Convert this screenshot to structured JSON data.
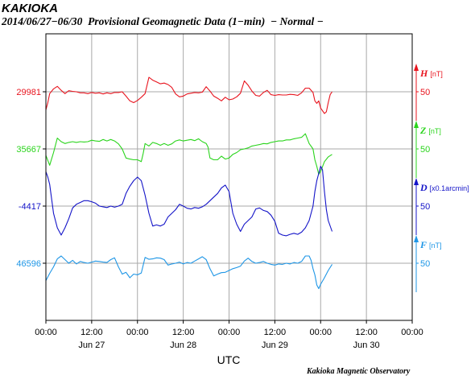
{
  "header": {
    "station": "KAKIOKA",
    "subtitle": "2014/06/27−06/30  Provisional Geomagnetic Data (1−min)  − Normal −"
  },
  "footer": {
    "credit": "Kakioka Magnetic Observatory"
  },
  "chart_data": {
    "type": "line",
    "xlabel": "UTC",
    "x_ticks": [
      "00:00",
      "12:00",
      "00:00",
      "12:00",
      "00:00",
      "12:00",
      "00:00",
      "12:00",
      "00:00"
    ],
    "x_tick_hours": [
      0,
      12,
      24,
      36,
      48,
      60,
      72,
      84,
      96
    ],
    "day_labels": [
      {
        "hour": 12,
        "label": "Jun 27"
      },
      {
        "hour": 36,
        "label": "Jun 28"
      },
      {
        "hour": 60,
        "label": "Jun 29"
      },
      {
        "hour": 84,
        "label": "Jun 30"
      }
    ],
    "xlim_hours": [
      0,
      96
    ],
    "grid": true,
    "series": [
      {
        "name": "H",
        "unit": "[nT]",
        "color": "#e8141e",
        "baseline_label": "29981",
        "scale_label": "50",
        "scale_nT": 50,
        "points": [
          [
            0,
            -50
          ],
          [
            0.5,
            -30
          ],
          [
            1,
            -5
          ],
          [
            2,
            8
          ],
          [
            3,
            15
          ],
          [
            4,
            4
          ],
          [
            5,
            -5
          ],
          [
            6,
            3
          ],
          [
            7,
            1
          ],
          [
            8,
            0
          ],
          [
            9,
            -3
          ],
          [
            10,
            -3
          ],
          [
            11,
            -5
          ],
          [
            12,
            -2
          ],
          [
            13,
            -4
          ],
          [
            14,
            -3
          ],
          [
            15,
            -6
          ],
          [
            16,
            -3
          ],
          [
            17,
            -5
          ],
          [
            18,
            -2
          ],
          [
            19,
            -2
          ],
          [
            20,
            0
          ],
          [
            21,
            -12
          ],
          [
            22,
            -25
          ],
          [
            23,
            -30
          ],
          [
            24,
            -24
          ],
          [
            25,
            -15
          ],
          [
            26,
            -5
          ],
          [
            27,
            40
          ],
          [
            28,
            32
          ],
          [
            29,
            27
          ],
          [
            30,
            22
          ],
          [
            31,
            24
          ],
          [
            32,
            20
          ],
          [
            33,
            12
          ],
          [
            34,
            -6
          ],
          [
            35,
            -14
          ],
          [
            36,
            -12
          ],
          [
            37,
            -6
          ],
          [
            38,
            -4
          ],
          [
            39,
            -2
          ],
          [
            40,
            -3
          ],
          [
            41,
            -1
          ],
          [
            42,
            14
          ],
          [
            43,
            2
          ],
          [
            44,
            -12
          ],
          [
            45,
            -18
          ],
          [
            46,
            -25
          ],
          [
            47,
            -15
          ],
          [
            48,
            -22
          ],
          [
            49,
            -20
          ],
          [
            50,
            -14
          ],
          [
            51,
            -4
          ],
          [
            52,
            30
          ],
          [
            53,
            18
          ],
          [
            54,
            2
          ],
          [
            55,
            -10
          ],
          [
            56,
            -12
          ],
          [
            57,
            -2
          ],
          [
            58,
            4
          ],
          [
            59,
            -8
          ],
          [
            60,
            -10
          ],
          [
            61,
            -8
          ],
          [
            62,
            -9
          ],
          [
            63,
            -9
          ],
          [
            64,
            -7
          ],
          [
            65,
            -8
          ],
          [
            66,
            -10
          ],
          [
            67,
            -3
          ],
          [
            68,
            10
          ],
          [
            69,
            10
          ],
          [
            70,
            -2
          ],
          [
            70.5,
            -25
          ],
          [
            71,
            -32
          ],
          [
            71.5,
            -25
          ],
          [
            72,
            -45
          ],
          [
            73,
            -60
          ],
          [
            73.5,
            -55
          ],
          [
            74,
            -30
          ],
          [
            74.5,
            -8
          ],
          [
            75,
            0
          ]
        ]
      },
      {
        "name": "Z",
        "unit": "[nT]",
        "color": "#2ad41c",
        "baseline_label": "35667",
        "scale_label": "50",
        "scale_nT": 50,
        "points": [
          [
            0,
            -18
          ],
          [
            1,
            -45
          ],
          [
            2,
            -10
          ],
          [
            3,
            30
          ],
          [
            4,
            20
          ],
          [
            5,
            15
          ],
          [
            6,
            18
          ],
          [
            7,
            20
          ],
          [
            8,
            18
          ],
          [
            9,
            20
          ],
          [
            10,
            19
          ],
          [
            11,
            20
          ],
          [
            12,
            24
          ],
          [
            13,
            22
          ],
          [
            14,
            21
          ],
          [
            15,
            26
          ],
          [
            16,
            22
          ],
          [
            17,
            26
          ],
          [
            18,
            22
          ],
          [
            19,
            14
          ],
          [
            20,
            0
          ],
          [
            21,
            -25
          ],
          [
            22,
            -28
          ],
          [
            23,
            -30
          ],
          [
            24,
            -30
          ],
          [
            25,
            -35
          ],
          [
            25.5,
            -12
          ],
          [
            26,
            15
          ],
          [
            27,
            8
          ],
          [
            28,
            18
          ],
          [
            29,
            15
          ],
          [
            30,
            10
          ],
          [
            31,
            15
          ],
          [
            32,
            10
          ],
          [
            33,
            14
          ],
          [
            34,
            22
          ],
          [
            35,
            25
          ],
          [
            36,
            22
          ],
          [
            37,
            24
          ],
          [
            38,
            26
          ],
          [
            39,
            23
          ],
          [
            40,
            28
          ],
          [
            41,
            20
          ],
          [
            42,
            15
          ],
          [
            42.5,
            5
          ],
          [
            43,
            -25
          ],
          [
            44,
            -30
          ],
          [
            45,
            -30
          ],
          [
            46,
            -20
          ],
          [
            47,
            -28
          ],
          [
            48,
            -25
          ],
          [
            49,
            -15
          ],
          [
            50,
            -10
          ],
          [
            51,
            -2
          ],
          [
            52,
            0
          ],
          [
            53,
            3
          ],
          [
            54,
            8
          ],
          [
            55,
            10
          ],
          [
            56,
            12
          ],
          [
            57,
            15
          ],
          [
            58,
            14
          ],
          [
            59,
            18
          ],
          [
            60,
            20
          ],
          [
            61,
            22
          ],
          [
            62,
            22
          ],
          [
            63,
            25
          ],
          [
            64,
            25
          ],
          [
            65,
            28
          ],
          [
            66,
            30
          ],
          [
            67,
            32
          ],
          [
            68,
            42
          ],
          [
            69,
            15
          ],
          [
            70,
            0
          ],
          [
            70.5,
            -30
          ],
          [
            71,
            -48
          ],
          [
            71.5,
            -70
          ],
          [
            72,
            -62
          ],
          [
            73,
            -35
          ],
          [
            74,
            -22
          ],
          [
            75,
            -15
          ]
        ]
      },
      {
        "name": "D",
        "unit": "[x0.1arcmin]",
        "color": "#1414c8",
        "baseline_label": "-4417",
        "scale_label": "50",
        "scale_nT": 50,
        "points": [
          [
            0,
            95
          ],
          [
            0.5,
            80
          ],
          [
            1,
            60
          ],
          [
            2,
            -20
          ],
          [
            3,
            -60
          ],
          [
            4,
            -80
          ],
          [
            5,
            -60
          ],
          [
            6,
            -35
          ],
          [
            7,
            -5
          ],
          [
            8,
            5
          ],
          [
            9,
            10
          ],
          [
            10,
            15
          ],
          [
            11,
            15
          ],
          [
            12,
            12
          ],
          [
            13,
            8
          ],
          [
            14,
            0
          ],
          [
            15,
            -2
          ],
          [
            16,
            -4
          ],
          [
            17,
            0
          ],
          [
            18,
            -3
          ],
          [
            19,
            0
          ],
          [
            20,
            5
          ],
          [
            21,
            35
          ],
          [
            22,
            55
          ],
          [
            23,
            70
          ],
          [
            24,
            80
          ],
          [
            25,
            70
          ],
          [
            26,
            30
          ],
          [
            27,
            -20
          ],
          [
            28,
            -55
          ],
          [
            29,
            -52
          ],
          [
            30,
            -55
          ],
          [
            31,
            -50
          ],
          [
            32,
            -30
          ],
          [
            33,
            -20
          ],
          [
            34,
            -10
          ],
          [
            35,
            5
          ],
          [
            36,
            0
          ],
          [
            37,
            -6
          ],
          [
            38,
            -8
          ],
          [
            39,
            -4
          ],
          [
            40,
            -6
          ],
          [
            41,
            -2
          ],
          [
            42,
            5
          ],
          [
            43,
            15
          ],
          [
            44,
            25
          ],
          [
            45,
            35
          ],
          [
            46,
            50
          ],
          [
            47,
            58
          ],
          [
            48,
            40
          ],
          [
            49,
            -20
          ],
          [
            50,
            -50
          ],
          [
            51,
            -70
          ],
          [
            52,
            -50
          ],
          [
            53,
            -40
          ],
          [
            54,
            -30
          ],
          [
            55,
            -8
          ],
          [
            56,
            -5
          ],
          [
            57,
            -12
          ],
          [
            58,
            -15
          ],
          [
            59,
            -25
          ],
          [
            60,
            -42
          ],
          [
            61,
            -75
          ],
          [
            62,
            -80
          ],
          [
            63,
            -82
          ],
          [
            64,
            -78
          ],
          [
            65,
            -75
          ],
          [
            66,
            -78
          ],
          [
            67,
            -72
          ],
          [
            68,
            -60
          ],
          [
            69,
            -40
          ],
          [
            70,
            0
          ],
          [
            70.5,
            40
          ],
          [
            71,
            70
          ],
          [
            71.5,
            90
          ],
          [
            72,
            110
          ],
          [
            72.5,
            100
          ],
          [
            73,
            40
          ],
          [
            73.5,
            -10
          ],
          [
            74,
            -40
          ],
          [
            75,
            -70
          ]
        ]
      },
      {
        "name": "F",
        "unit": "[nT]",
        "color": "#1e96e6",
        "baseline_label": "46596",
        "scale_label": "50",
        "scale_nT": 50,
        "points": [
          [
            0,
            -48
          ],
          [
            1,
            -28
          ],
          [
            2,
            -10
          ],
          [
            3,
            12
          ],
          [
            4,
            20
          ],
          [
            5,
            10
          ],
          [
            6,
            0
          ],
          [
            7,
            8
          ],
          [
            8,
            -2
          ],
          [
            9,
            5
          ],
          [
            10,
            2
          ],
          [
            11,
            0
          ],
          [
            12,
            3
          ],
          [
            13,
            6
          ],
          [
            14,
            5
          ],
          [
            15,
            3
          ],
          [
            16,
            2
          ],
          [
            17,
            10
          ],
          [
            18,
            15
          ],
          [
            19,
            -10
          ],
          [
            20,
            -30
          ],
          [
            21,
            -25
          ],
          [
            22,
            -40
          ],
          [
            23,
            -30
          ],
          [
            24,
            -32
          ],
          [
            25,
            -27
          ],
          [
            25.5,
            -5
          ],
          [
            26,
            16
          ],
          [
            27,
            11
          ],
          [
            28,
            12
          ],
          [
            29,
            15
          ],
          [
            30,
            14
          ],
          [
            31,
            10
          ],
          [
            32,
            -5
          ],
          [
            33,
            -2
          ],
          [
            34,
            0
          ],
          [
            35,
            3
          ],
          [
            36,
            -2
          ],
          [
            37,
            2
          ],
          [
            38,
            0
          ],
          [
            39,
            6
          ],
          [
            40,
            12
          ],
          [
            41,
            18
          ],
          [
            42,
            10
          ],
          [
            43,
            -15
          ],
          [
            44,
            -35
          ],
          [
            45,
            -30
          ],
          [
            46,
            -26
          ],
          [
            47,
            -25
          ],
          [
            48,
            -20
          ],
          [
            49,
            -15
          ],
          [
            50,
            -12
          ],
          [
            51,
            -8
          ],
          [
            52,
            6
          ],
          [
            53,
            14
          ],
          [
            54,
            5
          ],
          [
            55,
            0
          ],
          [
            56,
            2
          ],
          [
            57,
            5
          ],
          [
            58,
            0
          ],
          [
            59,
            -3
          ],
          [
            60,
            -5
          ],
          [
            61,
            -2
          ],
          [
            62,
            -3
          ],
          [
            63,
            0
          ],
          [
            64,
            -2
          ],
          [
            65,
            2
          ],
          [
            66,
            0
          ],
          [
            67,
            5
          ],
          [
            68,
            20
          ],
          [
            69,
            20
          ],
          [
            69.5,
            8
          ],
          [
            70,
            -15
          ],
          [
            70.5,
            -32
          ],
          [
            71,
            -60
          ],
          [
            71.5,
            -70
          ],
          [
            72,
            -58
          ],
          [
            73,
            -40
          ],
          [
            74,
            -20
          ],
          [
            75,
            -3
          ]
        ]
      }
    ]
  }
}
